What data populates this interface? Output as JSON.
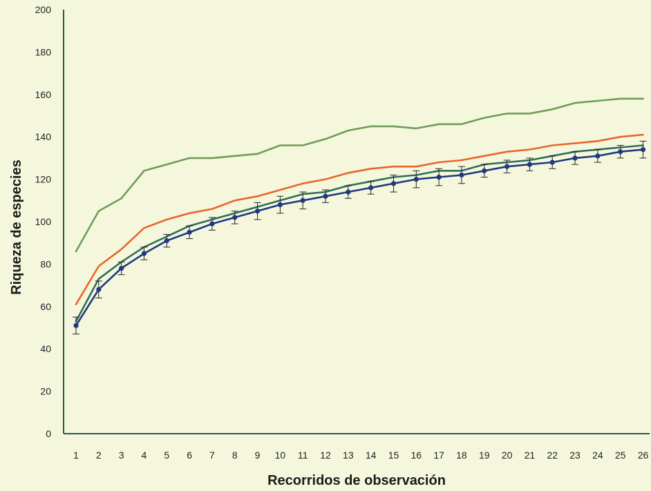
{
  "chart_data": {
    "type": "line",
    "title": "",
    "xlabel": "Recorridos de observación",
    "ylabel": "Riqueza de especies",
    "x": [
      1,
      2,
      3,
      4,
      5,
      6,
      7,
      8,
      9,
      10,
      11,
      12,
      13,
      14,
      15,
      16,
      17,
      18,
      19,
      20,
      21,
      22,
      23,
      24,
      25,
      26
    ],
    "ylim": [
      0,
      200
    ],
    "yticks": [
      0,
      20,
      40,
      60,
      80,
      100,
      120,
      140,
      160,
      180,
      200
    ],
    "grid": false,
    "legend": "none",
    "series": [
      {
        "color": "#6f9b57",
        "values": [
          86,
          105,
          111,
          124,
          127,
          130,
          130,
          131,
          132,
          136,
          136,
          139,
          143,
          145,
          145,
          144,
          146,
          146,
          149,
          151,
          151,
          153,
          156,
          157,
          158,
          158
        ]
      },
      {
        "color": "#e8652a",
        "values": [
          61,
          79,
          87,
          97,
          101,
          104,
          106,
          110,
          112,
          115,
          118,
          120,
          123,
          125,
          126,
          126,
          128,
          129,
          131,
          133,
          134,
          136,
          137,
          138,
          140,
          141
        ]
      },
      {
        "color": "#2f6e58",
        "values": [
          53,
          73,
          81,
          88,
          93,
          98,
          101,
          104,
          107,
          110,
          113,
          114,
          117,
          119,
          121,
          122,
          124,
          124,
          127,
          128,
          129,
          131,
          133,
          134,
          135,
          136
        ]
      },
      {
        "color": "#1f3880",
        "markers": true,
        "values": [
          51,
          68,
          78,
          85,
          91,
          95,
          99,
          102,
          105,
          108,
          110,
          112,
          114,
          116,
          118,
          120,
          121,
          122,
          124,
          126,
          127,
          128,
          130,
          131,
          133,
          134
        ],
        "error": [
          4,
          4,
          3,
          3,
          3,
          3,
          3,
          3,
          4,
          4,
          4,
          3,
          3,
          3,
          4,
          4,
          4,
          4,
          3,
          3,
          3,
          3,
          3,
          3,
          3,
          4
        ]
      }
    ]
  }
}
